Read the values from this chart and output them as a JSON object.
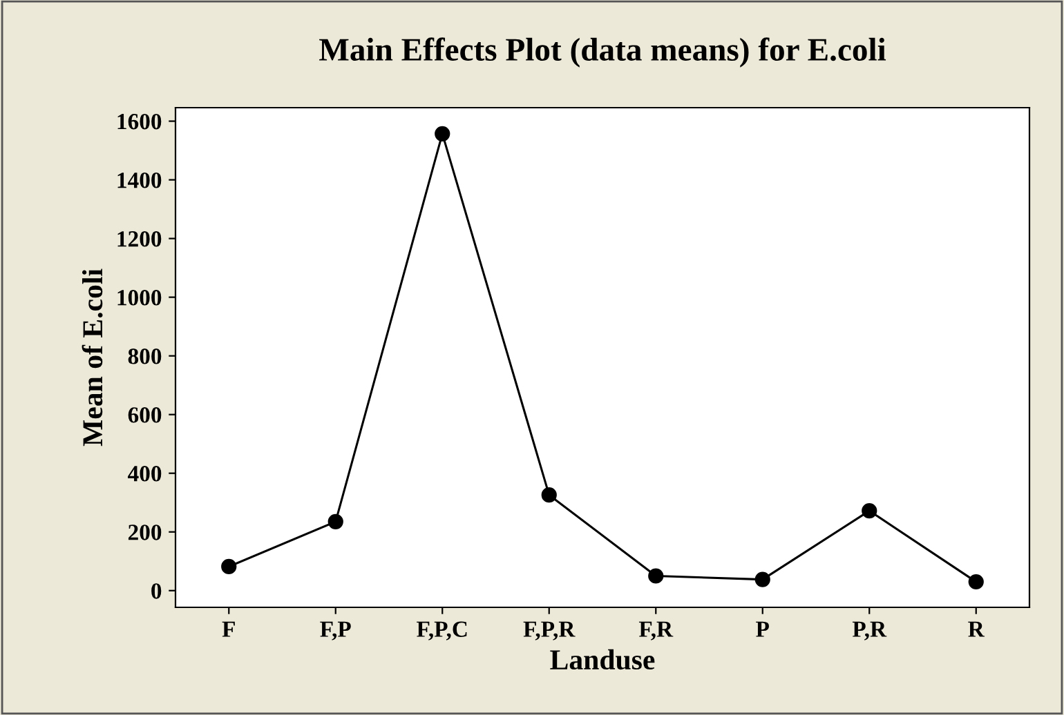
{
  "chart_data": {
    "type": "line",
    "title": "Main Effects Plot (data means) for E.coli",
    "xlabel": "Landuse",
    "ylabel": "Mean of E.coli",
    "categories": [
      "F",
      "F,P",
      "F,P,C",
      "F,P,R",
      "F,R",
      "P",
      "P,R",
      "R"
    ],
    "series": [
      {
        "color": "#000000",
        "values": [
          82,
          235,
          1557,
          326,
          50,
          38,
          272,
          30
        ]
      }
    ],
    "ylim": [
      -57,
      1646
    ],
    "yticks": [
      0,
      200,
      400,
      600,
      800,
      1000,
      1200,
      1400,
      1600
    ],
    "marker": "circle",
    "line_style": "solid",
    "grid": false,
    "legend": false
  }
}
